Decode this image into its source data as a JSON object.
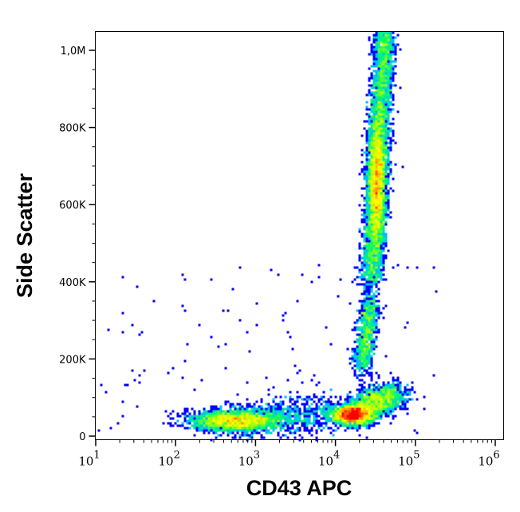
{
  "chart_data": {
    "type": "heatmap",
    "subtype": "flow-cytometry density dot plot",
    "xlabel": "CD43 APC",
    "ylabel": "Side Scatter",
    "xscale": "log",
    "xlim_log10": [
      0.99,
      6.1
    ],
    "ylim": [
      -8000,
      1050000
    ],
    "x_ticks": [
      {
        "value": 10,
        "base": "10",
        "exp": "1"
      },
      {
        "value": 100,
        "base": "10",
        "exp": "2"
      },
      {
        "value": 1000,
        "base": "10",
        "exp": "3"
      },
      {
        "value": 10000,
        "base": "10",
        "exp": "4"
      },
      {
        "value": 100000,
        "base": "10",
        "exp": "5"
      },
      {
        "value": 1000000,
        "base": "10",
        "exp": "6"
      }
    ],
    "y_ticks": [
      {
        "value": 0,
        "label": "0"
      },
      {
        "value": 200000,
        "label": "200K"
      },
      {
        "value": 400000,
        "label": "400K"
      },
      {
        "value": 600000,
        "label": "600K"
      },
      {
        "value": 800000,
        "label": "800K"
      },
      {
        "value": 1000000,
        "label": "1,0M"
      }
    ],
    "colormap": [
      "#0000ff",
      "#00c0ff",
      "#00ff60",
      "#c0ff00",
      "#ffff00",
      "#ff8000",
      "#ff0000"
    ],
    "populations": [
      {
        "name": "CD43-low cluster",
        "log_x": 2.75,
        "y": 40000,
        "sd_log_x": 0.28,
        "sd_y": 14000,
        "n": 2600
      },
      {
        "name": "CD43-high low-SSC cluster",
        "log_x": 4.22,
        "y": 55000,
        "sd_log_x": 0.12,
        "sd_y": 12000,
        "n": 2600
      },
      {
        "name": "low-SSC tail",
        "from": [
          4.3,
          70000
        ],
        "to": [
          4.75,
          110000
        ],
        "sd_log_x": 0.12,
        "sd_y": 18000,
        "n": 1500
      },
      {
        "name": "mid-SSC cluster",
        "from": [
          4.33,
          180000
        ],
        "to": [
          4.45,
          350000
        ],
        "sd_log_x": 0.06,
        "sd_y": 22000,
        "n": 1000
      },
      {
        "name": "high-SSC streak",
        "from": [
          4.45,
          400000
        ],
        "to": [
          4.62,
          1050000
        ],
        "sd_log_x": 0.07,
        "sd_y": 15000,
        "n": 4000
      },
      {
        "name": "high-SSC core",
        "log_x": 4.52,
        "y": 660000,
        "sd_log_x": 0.055,
        "sd_y": 80000,
        "n": 2500
      },
      {
        "name": "bridge",
        "from": [
          3.1,
          45000
        ],
        "to": [
          3.95,
          60000
        ],
        "sd_log_x": 0.3,
        "sd_y": 28000,
        "n": 700
      },
      {
        "name": "sparse events",
        "uniform_log_x": [
          1.0,
          5.3
        ],
        "uniform_y": [
          0,
          450000
        ],
        "n": 120
      }
    ]
  }
}
